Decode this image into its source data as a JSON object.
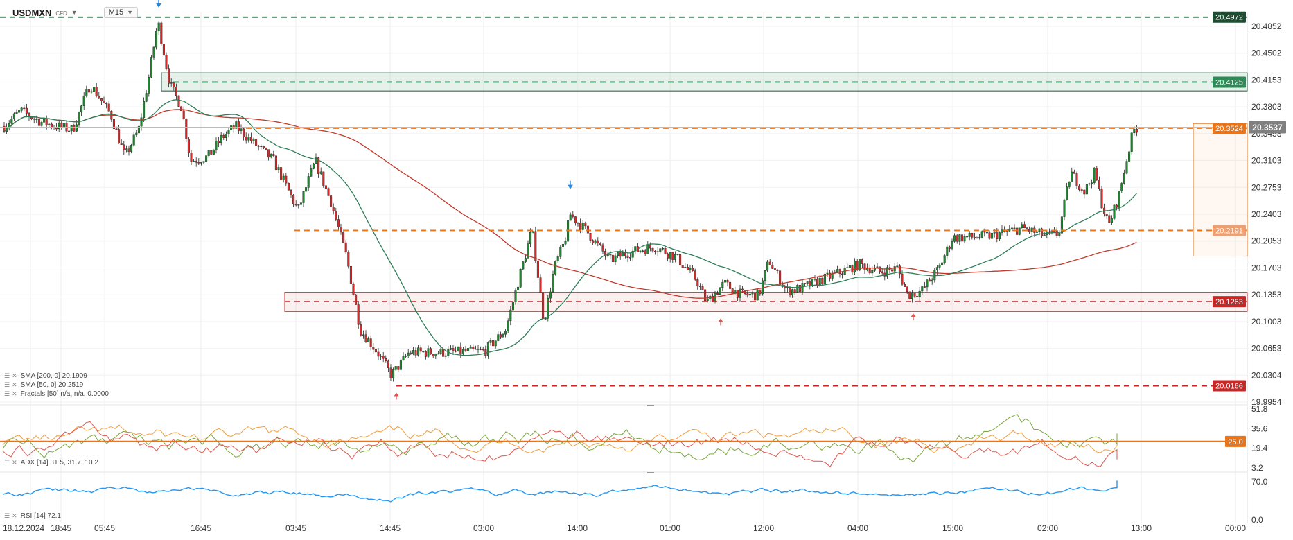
{
  "header": {
    "symbol": "USDMXN",
    "instrument_type": "CFD",
    "timeframe": "M15",
    "dropdown_icon": "caret-down-icon"
  },
  "indicators": {
    "sma200": "SMA [200, 0] 20.1909",
    "sma50": "SMA [50, 0] 20.2519",
    "fractals": "Fractals [50] n/a, n/a, 0.0000",
    "adx": "ADX [14] 31.5, 31.7, 10.2",
    "rsi": "RSI [14] 72.1"
  },
  "colors": {
    "bull": "#1e8a2e",
    "bear": "#d92b2b",
    "sma200": "#c0392b",
    "sma50": "#2e7d57",
    "orange": "#e8741c",
    "dark_green": "#1f5a3a",
    "red_zone": "#c62828",
    "rsi": "#2196f3",
    "adx_main": "#f39c3c",
    "adx_plus": "#7aa63c",
    "adx_minus": "#e0574f",
    "current_price_badge": "#808080"
  },
  "chart_data": [
    {
      "type": "candlestick",
      "title": "",
      "y_ticks": [
        "20.4852",
        "20.4502",
        "20.4153",
        "20.3803",
        "20.3453",
        "20.3103",
        "20.2753",
        "20.2403",
        "20.2053",
        "20.1703",
        "20.1353",
        "20.1003",
        "20.0653",
        "20.0304",
        "19.9954"
      ],
      "ylim": [
        19.9954,
        20.5
      ],
      "x_ticks": [
        "18.12.2024",
        "18:45",
        "05:45",
        "16:45",
        "03:45",
        "14:45",
        "03:00",
        "14:00",
        "01:00",
        "12:00",
        "04:00",
        "15:00",
        "02:00",
        "13:00",
        "00:00"
      ],
      "price_levels": [
        {
          "label": "20.4972",
          "value": 20.4972,
          "style": "dashed",
          "color": "#1f5a3a"
        },
        {
          "label": "20.4125",
          "value": 20.4125,
          "style": "dashed",
          "color": "#2e8b57"
        },
        {
          "label": "20.3524",
          "value": 20.3524,
          "style": "dashed",
          "color": "#e8741c"
        },
        {
          "label": "20.2191",
          "value": 20.2191,
          "style": "dashed",
          "color": "#e8741c"
        },
        {
          "label": "20.1263",
          "value": 20.1263,
          "style": "dashed",
          "color": "#c62828"
        },
        {
          "label": "20.0166",
          "value": 20.0166,
          "style": "dashed",
          "color": "#c62828"
        }
      ],
      "current_price": "20.3537",
      "zones": [
        {
          "name": "resistance",
          "from": 20.401,
          "to": 20.4245
        },
        {
          "name": "support",
          "from": 20.1135,
          "to": 20.1385
        },
        {
          "name": "projection",
          "from": 20.1856,
          "to": 20.3585
        }
      ],
      "fractal_down_markers": [
        20.4972,
        20.2605
      ],
      "fractal_up_markers": [
        20.0166,
        20.1135,
        20.12
      ],
      "sma200_last": 20.1909,
      "sma50_last": 20.2519
    },
    {
      "type": "line",
      "title": "",
      "y_ticks": [
        "51.8",
        "35.6",
        "19.4",
        "3.2"
      ],
      "ylim": [
        3.2,
        51.8
      ],
      "threshold": "25.0",
      "threshold_value": 25.0,
      "series_last": [
        31.5,
        31.7,
        10.2
      ]
    },
    {
      "type": "line",
      "title": "",
      "y_ticks": [
        "70.0",
        "0.0"
      ],
      "ylim": [
        0,
        80
      ],
      "last_value": 72.1
    }
  ]
}
